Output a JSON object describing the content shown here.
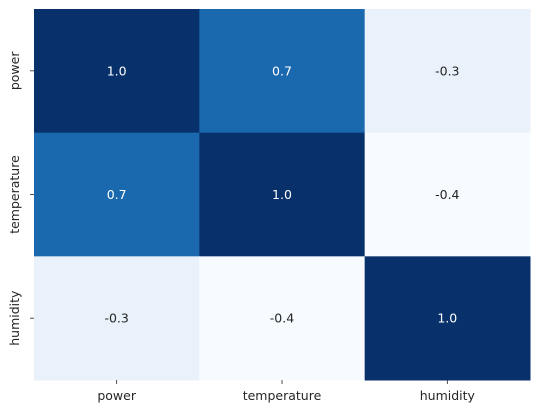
{
  "chart_data": {
    "type": "heatmap",
    "x_categories": [
      "power",
      "temperature",
      "humidity"
    ],
    "y_categories": [
      "power",
      "temperature",
      "humidity"
    ],
    "values": [
      [
        1.0,
        0.7,
        -0.3
      ],
      [
        0.7,
        1.0,
        -0.4
      ],
      [
        -0.3,
        -0.4,
        1.0
      ]
    ],
    "cell_labels": [
      [
        "1.0",
        "0.7",
        "-0.3"
      ],
      [
        "0.7",
        "1.0",
        "-0.4"
      ],
      [
        "-0.3",
        "-0.4",
        "1.0"
      ]
    ],
    "colormap": "Blues",
    "value_range": [
      -0.4,
      1.0
    ],
    "colorbar": false,
    "grid": false
  }
}
